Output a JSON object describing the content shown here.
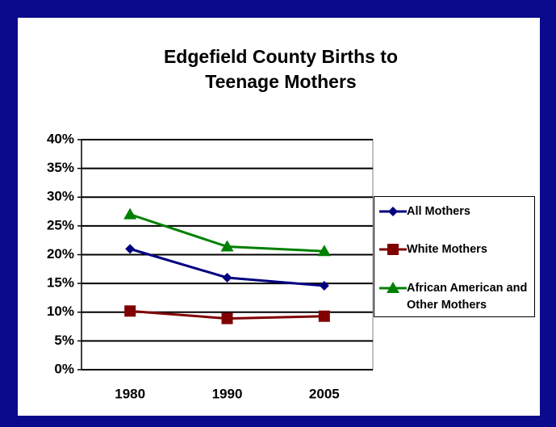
{
  "chart_data": {
    "type": "line",
    "title": "Edgefield County Births to Teenage Mothers",
    "categories": [
      "1980",
      "1990",
      "2005"
    ],
    "series": [
      {
        "name": "All Mothers",
        "color": "#000080",
        "marker": "diamond",
        "values": [
          21,
          16,
          14.6
        ]
      },
      {
        "name": "White Mothers",
        "color": "#800000",
        "marker": "square",
        "values": [
          10.2,
          8.9,
          9.3
        ]
      },
      {
        "name": "African American and Other Mothers",
        "color": "#008000",
        "marker": "triangle",
        "values": [
          27,
          21.4,
          20.6
        ]
      }
    ],
    "ylim": [
      0,
      40
    ],
    "yticks": [
      {
        "value": 0,
        "label": "0%"
      },
      {
        "value": 5,
        "label": "5%"
      },
      {
        "value": 10,
        "label": "10%"
      },
      {
        "value": 15,
        "label": "15%"
      },
      {
        "value": 20,
        "label": "20%"
      },
      {
        "value": 25,
        "label": "25%"
      },
      {
        "value": 30,
        "label": "30%"
      },
      {
        "value": 35,
        "label": "35%"
      },
      {
        "value": 40,
        "label": "40%"
      }
    ],
    "grid": true,
    "legend": "right"
  }
}
